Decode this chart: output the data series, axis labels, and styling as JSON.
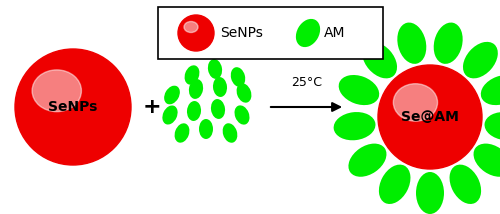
{
  "bg_color": "#ffffff",
  "senp_color_outer": "#ee0000",
  "senp_color_inner": "#ffaaaa",
  "am_color": "#00ee00",
  "arrow_label": "25°C",
  "senp_label": "SeNPs",
  "seam_label": "Se@AM",
  "font_size_main": 10,
  "font_size_arrow": 9,
  "font_size_legend": 10
}
